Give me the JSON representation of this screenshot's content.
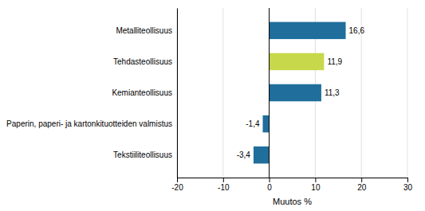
{
  "chart_data": {
    "type": "bar",
    "orientation": "horizontal",
    "categories": [
      "Tekstiiliteollisuus",
      "Paperin, paperi- ja kartonkituotteiden valmistus",
      "Kemianteollisuus",
      "Tehdasteollisuus",
      "Metalliteollisuus"
    ],
    "values": [
      -3.4,
      -1.4,
      11.3,
      11.9,
      16.6
    ],
    "value_labels": [
      "-3,4",
      "-1,4",
      "11,3",
      "11,9",
      "16,6"
    ],
    "data_labels": true,
    "colors": [
      "#1f6e9c",
      "#1f6e9c",
      "#1f6e9c",
      "#c8d84b",
      "#1f6e9c"
    ],
    "xlabel": "Muutos %",
    "xlim": [
      -20,
      30
    ],
    "xticks": [
      -20,
      -10,
      0,
      10,
      20,
      30
    ],
    "grid": true
  }
}
